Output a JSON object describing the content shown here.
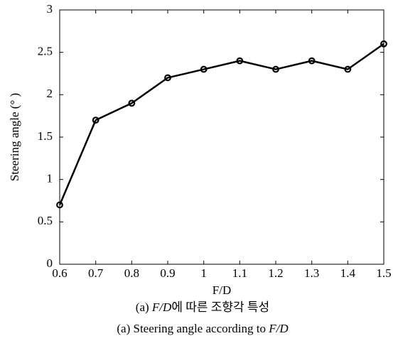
{
  "chart_data": {
    "type": "line",
    "x": [
      0.6,
      0.7,
      0.8,
      0.9,
      1,
      1.1,
      1.2,
      1.3,
      1.4,
      1.5
    ],
    "values": [
      0.7,
      1.7,
      1.9,
      2.2,
      2.3,
      2.4,
      2.3,
      2.4,
      2.3,
      2.6
    ],
    "color": "#000000",
    "xlim": [
      0.6,
      1.5
    ],
    "xticks": [
      0.6,
      0.7,
      0.8,
      0.9,
      1,
      1.1,
      1.2,
      1.3,
      1.4,
      1.5
    ],
    "ylim": [
      0,
      3
    ],
    "yticks": [
      0,
      0.5,
      1,
      1.5,
      2,
      2.5,
      3
    ],
    "x_label": "F/D",
    "y_label": "Steering angle (° )",
    "captions": [
      {
        "prefix": "(a) ",
        "italic": "F/D",
        "suffix": "에 따른 조향각 특성"
      },
      {
        "prefix": "(a) Steering angle according to ",
        "italic": "F/D"
      }
    ]
  }
}
